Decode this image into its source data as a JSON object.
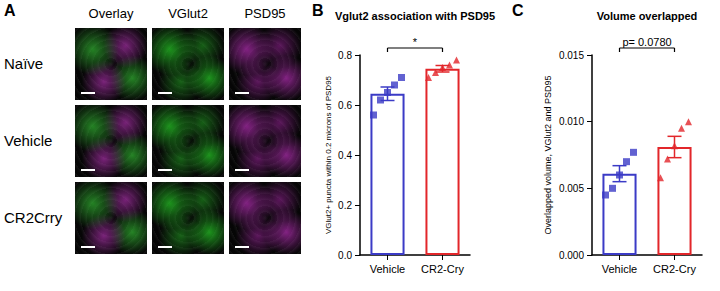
{
  "images": {
    "label": "A",
    "columns": [
      "Overlay",
      "VGlut2",
      "PSD95"
    ],
    "rows": [
      "Naïve",
      "Vehicle",
      "CR2Crry"
    ]
  },
  "chart_data": [
    {
      "label": "B",
      "type": "bar",
      "title": "Vglut2 association with PSD95",
      "y_label": "VGlut2+ puncta within 0.2 microns of PSD95",
      "categories": [
        "Vehicle",
        "CR2-Cry"
      ],
      "values": [
        0.645,
        0.745
      ],
      "errors": [
        0.027,
        0.013
      ],
      "colors": [
        "#3b3bc6",
        "#e2262a"
      ],
      "points": [
        {
          "category": "Vehicle",
          "marker": "square",
          "values": [
            0.56,
            0.62,
            0.65,
            0.68,
            0.71
          ]
        },
        {
          "category": "CR2-Cry",
          "marker": "triangle",
          "values": [
            0.71,
            0.73,
            0.75,
            0.76,
            0.78
          ]
        }
      ],
      "ylim": [
        0,
        0.8
      ],
      "yticks": [
        {
          "value": 0,
          "label": "0.0"
        },
        {
          "value": 0.2,
          "label": "0.2"
        },
        {
          "value": 0.4,
          "label": "0.4"
        },
        {
          "value": 0.6,
          "label": "0.6"
        },
        {
          "value": 0.8,
          "label": "0.8"
        }
      ],
      "annotations": [
        {
          "text": "*",
          "between": [
            "Vehicle",
            "CR2-Cry"
          ]
        }
      ]
    },
    {
      "label": "C",
      "type": "bar",
      "title": "Volume overlapped",
      "y_label": "Overlapped volume, VGlut2 and PSD95",
      "categories": [
        "Vehicle",
        "CR2-Cry"
      ],
      "values": [
        0.0061,
        0.0081
      ],
      "errors": [
        0.0006,
        0.0008
      ],
      "colors": [
        "#3b3bc6",
        "#e2262a"
      ],
      "points": [
        {
          "category": "Vehicle",
          "marker": "square",
          "values": [
            0.0045,
            0.005,
            0.006,
            0.007,
            0.0077
          ]
        },
        {
          "category": "CR2-Cry",
          "marker": "triangle",
          "values": [
            0.0058,
            0.0072,
            0.0082,
            0.0095,
            0.01
          ]
        }
      ],
      "ylim": [
        0,
        0.015
      ],
      "yticks": [
        {
          "value": 0,
          "label": "0.000"
        },
        {
          "value": 0.005,
          "label": "0.005"
        },
        {
          "value": 0.01,
          "label": "0.010"
        },
        {
          "value": 0.015,
          "label": "0.015"
        }
      ],
      "annotations": [
        {
          "text": "p= 0.0780",
          "between": [
            "Vehicle",
            "CR2-Cry"
          ]
        }
      ]
    }
  ]
}
